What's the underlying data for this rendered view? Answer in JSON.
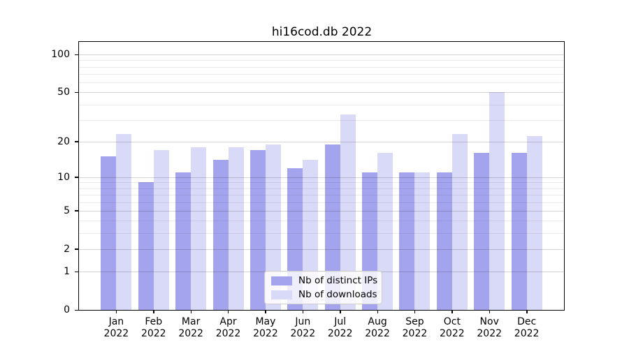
{
  "title": "hi16cod.db 2022",
  "chart_data": {
    "type": "bar",
    "title": "hi16cod.db 2022",
    "year_label": "2022",
    "categories": [
      "Jan",
      "Feb",
      "Mar",
      "Apr",
      "May",
      "Jun",
      "Jul",
      "Aug",
      "Sep",
      "Oct",
      "Nov",
      "Dec"
    ],
    "series": [
      {
        "name": "Nb of distinct IPs",
        "color": "#a4a4ee",
        "values": [
          15,
          9,
          11,
          14,
          17,
          12,
          19,
          11,
          11,
          11,
          16,
          16
        ]
      },
      {
        "name": "Nb of downloads",
        "color": "#d9d9f8",
        "values": [
          23,
          17,
          18,
          18,
          19,
          14,
          33,
          16,
          11,
          23,
          50,
          22
        ]
      }
    ],
    "yscale": "log1p",
    "ylim": [
      0,
      126
    ],
    "yticks": {
      "values": [
        100,
        50,
        20,
        10,
        5,
        2,
        1,
        0
      ],
      "labels": [
        "100",
        "50",
        "20",
        "10",
        "5",
        "2",
        "1",
        "0"
      ]
    },
    "yminor_values": [
      3,
      4,
      6,
      7,
      8,
      9,
      30,
      40,
      60,
      70,
      80,
      90
    ],
    "grid": true,
    "legend_position": "lower center"
  },
  "colors": {
    "background": "#ffffff",
    "axis": "#000000",
    "grid_major": "#d4d4d4",
    "grid_minor": "#ebebeb",
    "legend_border": "#cccccc",
    "bar_distinct_ips": "#a4a4ee",
    "bar_downloads": "#d9d9f8"
  }
}
